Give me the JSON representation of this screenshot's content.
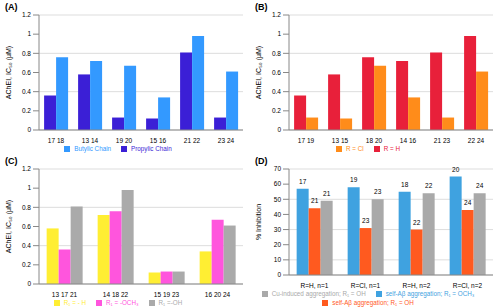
{
  "chart_data": [
    {
      "type": "bar",
      "title": "(A)",
      "y_label": "AChEI, IC₅₀ (μM)",
      "categories": [
        "17 18",
        "13 14",
        "19 20",
        "15 16",
        "21 22",
        "23 24"
      ],
      "series": [
        {
          "name": "Propylic Chain",
          "color": "#3b1fd6",
          "values": [
            0.36,
            0.58,
            0.13,
            0.12,
            0.81,
            0.13
          ]
        },
        {
          "name": "Butylic Chain",
          "color": "#3399ff",
          "values": [
            0.76,
            0.72,
            0.67,
            0.34,
            0.98,
            0.61
          ]
        }
      ],
      "ylim": [
        0,
        1.2
      ],
      "yticks": [
        0,
        0.2,
        0.4,
        0.6,
        0.8,
        1,
        1.2
      ],
      "grid": true,
      "legend": "bottom"
    },
    {
      "type": "bar",
      "title": "(B)",
      "y_label": "AChEI, IC₅₀ (μM)",
      "categories": [
        "17 19",
        "13 15",
        "18 20",
        "14 16",
        "21 23",
        "22 24"
      ],
      "series": [
        {
          "name": "R = H",
          "color": "#e8203a",
          "values": [
            0.36,
            0.58,
            0.76,
            0.72,
            0.81,
            0.98
          ]
        },
        {
          "name": "R = Cl",
          "color": "#ff8c1a",
          "values": [
            0.13,
            0.12,
            0.67,
            0.34,
            0.13,
            0.61
          ]
        }
      ],
      "ylim": [
        0,
        1.2
      ],
      "yticks": [
        0,
        0.2,
        0.4,
        0.6,
        0.8,
        1,
        1.2
      ],
      "grid": true,
      "legend": "bottom"
    },
    {
      "type": "bar",
      "title": "(C)",
      "y_label": "AChEI, IC₅₀ (μM)",
      "categories": [
        "13 17 21",
        "14 18 22",
        "15 19 23",
        "16 20 24"
      ],
      "series": [
        {
          "name": "R₁ = - H",
          "color": "#ffee33",
          "values": [
            0.58,
            0.72,
            0.12,
            0.34
          ]
        },
        {
          "name": "R₁ = -OCH₃",
          "color": "#ff55dd",
          "values": [
            0.36,
            0.76,
            0.13,
            0.67
          ]
        },
        {
          "name": "R₁ =-OH",
          "color": "#aaaaaa",
          "values": [
            0.81,
            0.98,
            0.13,
            0.61
          ]
        }
      ],
      "ylim": [
        0,
        1.2
      ],
      "yticks": [
        0,
        0.2,
        0.4,
        0.6,
        0.8,
        1,
        1.2
      ],
      "grid": true,
      "legend": "bottom"
    },
    {
      "type": "bar",
      "title": "(D)",
      "y_label": "% Inhibition",
      "categories": [
        "R=H, n=1",
        "R=Cl, n=1",
        "R=H, n=2",
        "R=Cl, n=2"
      ],
      "series": [
        {
          "name": "self-Aβ aggregation; R₁ = OCH₃",
          "color": "#3fa2e0",
          "values": [
            57,
            58,
            55,
            65
          ],
          "bar_labels": [
            "17",
            "19",
            "18",
            "20"
          ]
        },
        {
          "name": "self-Aβ aggregation; R₁ = OH",
          "color": "#ff5a1f",
          "values": [
            44,
            31,
            30,
            43
          ],
          "bar_labels": [
            "21",
            "23",
            "22",
            "24"
          ]
        },
        {
          "name": "Cu-induced aggregation; R₁ = OH",
          "color": "#a9a9a9",
          "values": [
            49,
            50,
            54,
            54
          ],
          "bar_labels": [
            "21",
            "23",
            "22",
            "24"
          ]
        }
      ],
      "ylim": [
        0,
        70
      ],
      "yticks": [
        0,
        10,
        20,
        30,
        40,
        50,
        60,
        70
      ],
      "grid": true,
      "legend": "bottom"
    }
  ]
}
